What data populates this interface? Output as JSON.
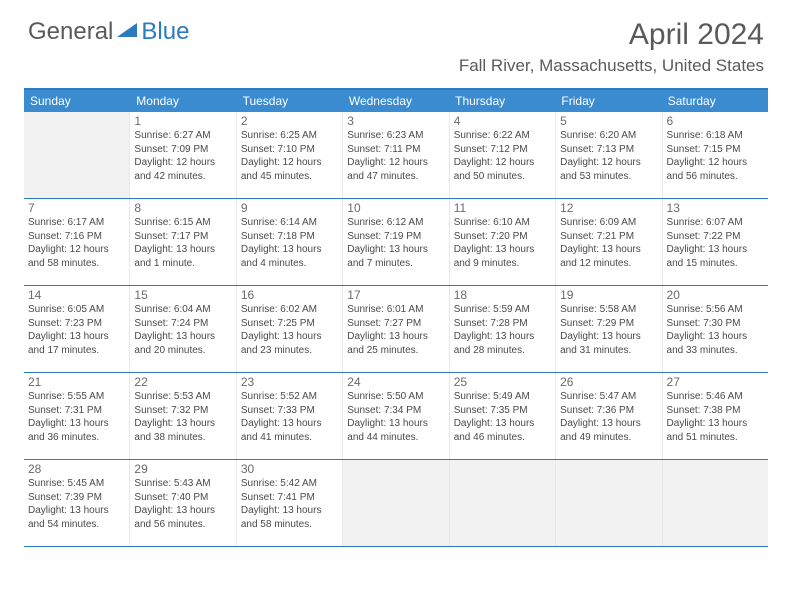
{
  "logo": {
    "part1": "General",
    "part2": "Blue"
  },
  "title": "April 2024",
  "location": "Fall River, Massachusetts, United States",
  "colors": {
    "accent": "#3a8bd0",
    "border": "#2c7bbf",
    "text": "#4a4a4a",
    "empty_bg": "#f2f2f2"
  },
  "day_names": [
    "Sunday",
    "Monday",
    "Tuesday",
    "Wednesday",
    "Thursday",
    "Friday",
    "Saturday"
  ],
  "weeks": [
    [
      null,
      {
        "n": "1",
        "sr": "6:27 AM",
        "ss": "7:09 PM",
        "dl": "12 hours and 42 minutes."
      },
      {
        "n": "2",
        "sr": "6:25 AM",
        "ss": "7:10 PM",
        "dl": "12 hours and 45 minutes."
      },
      {
        "n": "3",
        "sr": "6:23 AM",
        "ss": "7:11 PM",
        "dl": "12 hours and 47 minutes."
      },
      {
        "n": "4",
        "sr": "6:22 AM",
        "ss": "7:12 PM",
        "dl": "12 hours and 50 minutes."
      },
      {
        "n": "5",
        "sr": "6:20 AM",
        "ss": "7:13 PM",
        "dl": "12 hours and 53 minutes."
      },
      {
        "n": "6",
        "sr": "6:18 AM",
        "ss": "7:15 PM",
        "dl": "12 hours and 56 minutes."
      }
    ],
    [
      {
        "n": "7",
        "sr": "6:17 AM",
        "ss": "7:16 PM",
        "dl": "12 hours and 58 minutes."
      },
      {
        "n": "8",
        "sr": "6:15 AM",
        "ss": "7:17 PM",
        "dl": "13 hours and 1 minute."
      },
      {
        "n": "9",
        "sr": "6:14 AM",
        "ss": "7:18 PM",
        "dl": "13 hours and 4 minutes."
      },
      {
        "n": "10",
        "sr": "6:12 AM",
        "ss": "7:19 PM",
        "dl": "13 hours and 7 minutes."
      },
      {
        "n": "11",
        "sr": "6:10 AM",
        "ss": "7:20 PM",
        "dl": "13 hours and 9 minutes."
      },
      {
        "n": "12",
        "sr": "6:09 AM",
        "ss": "7:21 PM",
        "dl": "13 hours and 12 minutes."
      },
      {
        "n": "13",
        "sr": "6:07 AM",
        "ss": "7:22 PM",
        "dl": "13 hours and 15 minutes."
      }
    ],
    [
      {
        "n": "14",
        "sr": "6:05 AM",
        "ss": "7:23 PM",
        "dl": "13 hours and 17 minutes."
      },
      {
        "n": "15",
        "sr": "6:04 AM",
        "ss": "7:24 PM",
        "dl": "13 hours and 20 minutes."
      },
      {
        "n": "16",
        "sr": "6:02 AM",
        "ss": "7:25 PM",
        "dl": "13 hours and 23 minutes."
      },
      {
        "n": "17",
        "sr": "6:01 AM",
        "ss": "7:27 PM",
        "dl": "13 hours and 25 minutes."
      },
      {
        "n": "18",
        "sr": "5:59 AM",
        "ss": "7:28 PM",
        "dl": "13 hours and 28 minutes."
      },
      {
        "n": "19",
        "sr": "5:58 AM",
        "ss": "7:29 PM",
        "dl": "13 hours and 31 minutes."
      },
      {
        "n": "20",
        "sr": "5:56 AM",
        "ss": "7:30 PM",
        "dl": "13 hours and 33 minutes."
      }
    ],
    [
      {
        "n": "21",
        "sr": "5:55 AM",
        "ss": "7:31 PM",
        "dl": "13 hours and 36 minutes."
      },
      {
        "n": "22",
        "sr": "5:53 AM",
        "ss": "7:32 PM",
        "dl": "13 hours and 38 minutes."
      },
      {
        "n": "23",
        "sr": "5:52 AM",
        "ss": "7:33 PM",
        "dl": "13 hours and 41 minutes."
      },
      {
        "n": "24",
        "sr": "5:50 AM",
        "ss": "7:34 PM",
        "dl": "13 hours and 44 minutes."
      },
      {
        "n": "25",
        "sr": "5:49 AM",
        "ss": "7:35 PM",
        "dl": "13 hours and 46 minutes."
      },
      {
        "n": "26",
        "sr": "5:47 AM",
        "ss": "7:36 PM",
        "dl": "13 hours and 49 minutes."
      },
      {
        "n": "27",
        "sr": "5:46 AM",
        "ss": "7:38 PM",
        "dl": "13 hours and 51 minutes."
      }
    ],
    [
      {
        "n": "28",
        "sr": "5:45 AM",
        "ss": "7:39 PM",
        "dl": "13 hours and 54 minutes."
      },
      {
        "n": "29",
        "sr": "5:43 AM",
        "ss": "7:40 PM",
        "dl": "13 hours and 56 minutes."
      },
      {
        "n": "30",
        "sr": "5:42 AM",
        "ss": "7:41 PM",
        "dl": "13 hours and 58 minutes."
      },
      null,
      null,
      null,
      null
    ]
  ],
  "labels": {
    "sunrise": "Sunrise:",
    "sunset": "Sunset:",
    "daylight": "Daylight:"
  }
}
